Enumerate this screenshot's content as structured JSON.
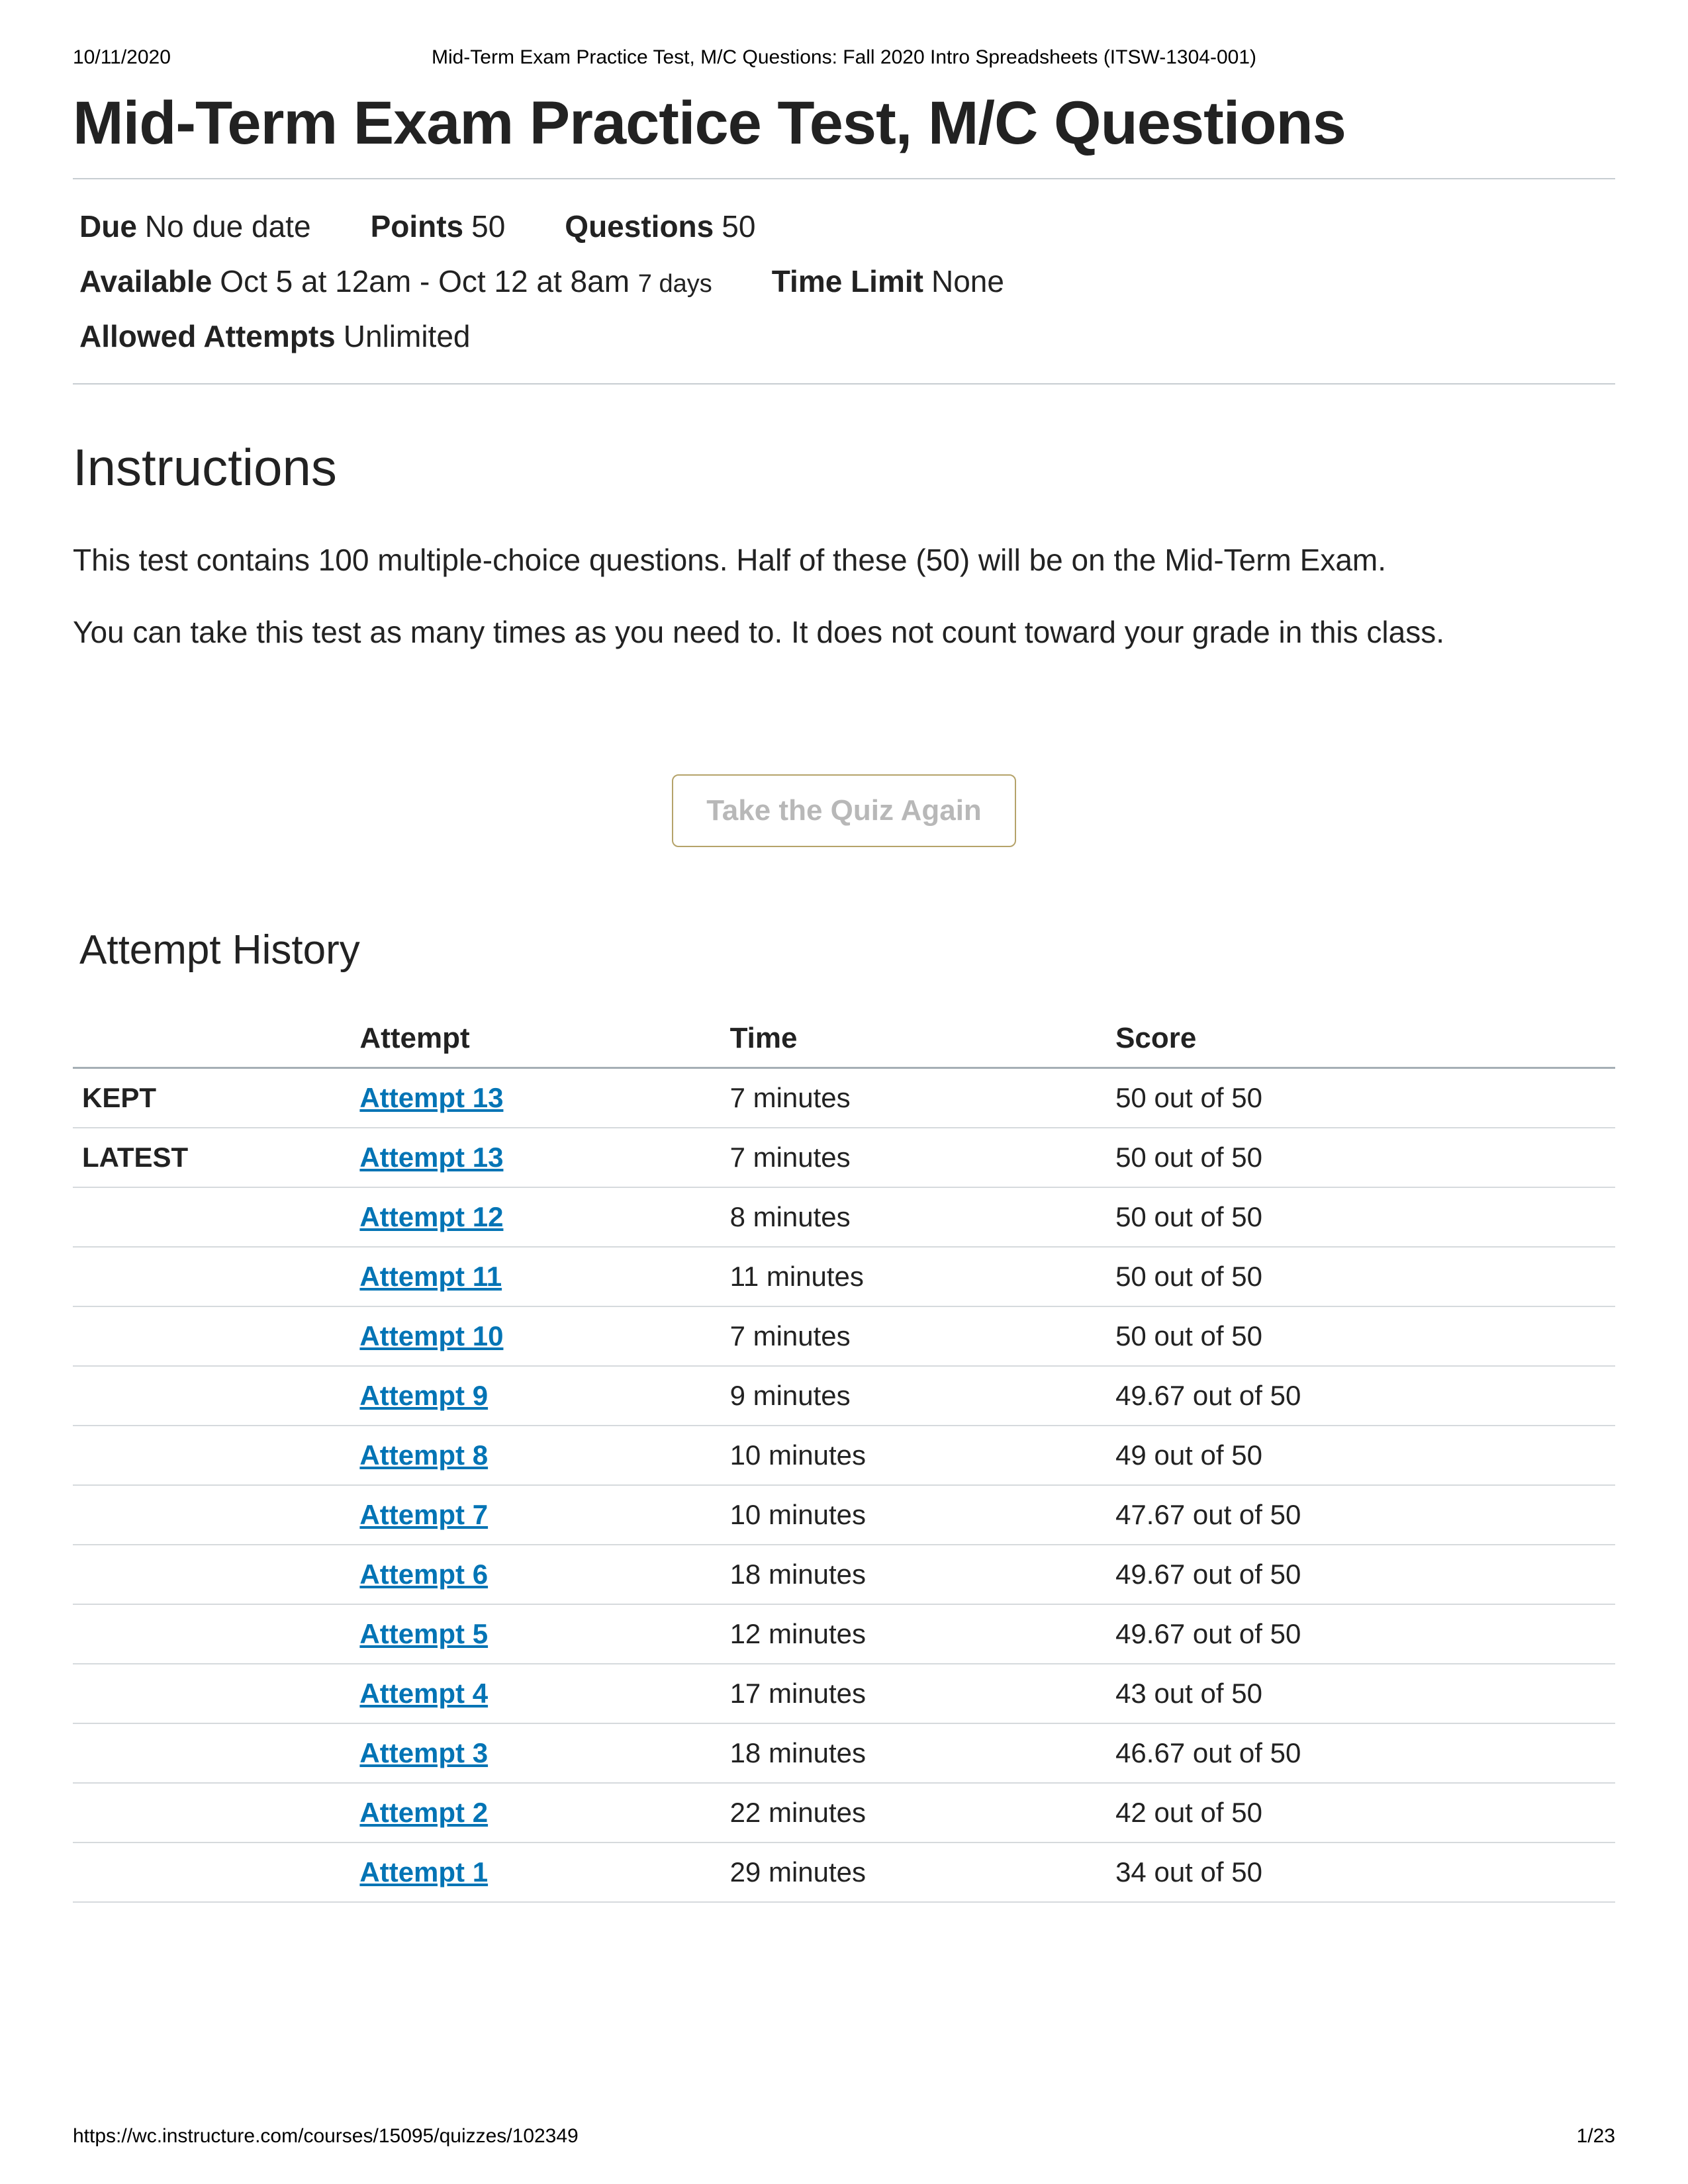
{
  "print": {
    "date": "10/11/2020",
    "header_center": "Mid-Term Exam Practice Test, M/C Questions: Fall 2020 Intro Spreadsheets (ITSW-1304-001)",
    "footer_url": "https://wc.instructure.com/courses/15095/quizzes/102349",
    "page_num": "1/23"
  },
  "title": "Mid-Term Exam Practice Test, M/C Questions",
  "meta": {
    "due_label": "Due",
    "due_value": "No due date",
    "points_label": "Points",
    "points_value": "50",
    "questions_label": "Questions",
    "questions_value": "50",
    "available_label": "Available",
    "available_value": "Oct 5 at 12am - Oct 12 at 8am",
    "available_sub": "7 days",
    "timelimit_label": "Time Limit",
    "timelimit_value": "None",
    "attempts_label": "Allowed Attempts",
    "attempts_value": "Unlimited"
  },
  "instructions": {
    "heading": "Instructions",
    "p1": "This test contains 100 multiple-choice questions. Half of these (50) will be on the Mid-Term Exam.",
    "p2": "You can take this test as many times as you need to. It does not count toward your grade in this class."
  },
  "take_again": "Take the Quiz Again",
  "history": {
    "heading": "Attempt History",
    "columns": {
      "c1": "",
      "c2": "Attempt",
      "c3": "Time",
      "c4": "Score"
    },
    "rows": [
      {
        "flag": "KEPT",
        "attempt": "Attempt 13",
        "time": "7 minutes",
        "score": "50 out of 50"
      },
      {
        "flag": "LATEST",
        "attempt": "Attempt 13",
        "time": "7 minutes",
        "score": "50 out of 50"
      },
      {
        "flag": "",
        "attempt": "Attempt 12",
        "time": "8 minutes",
        "score": "50 out of 50"
      },
      {
        "flag": "",
        "attempt": "Attempt 11",
        "time": "11 minutes",
        "score": "50 out of 50"
      },
      {
        "flag": "",
        "attempt": "Attempt 10",
        "time": "7 minutes",
        "score": "50 out of 50"
      },
      {
        "flag": "",
        "attempt": "Attempt 9",
        "time": "9 minutes",
        "score": "49.67 out of 50"
      },
      {
        "flag": "",
        "attempt": "Attempt 8",
        "time": "10 minutes",
        "score": "49 out of 50"
      },
      {
        "flag": "",
        "attempt": "Attempt 7",
        "time": "10 minutes",
        "score": "47.67 out of 50"
      },
      {
        "flag": "",
        "attempt": "Attempt 6",
        "time": "18 minutes",
        "score": "49.67 out of 50"
      },
      {
        "flag": "",
        "attempt": "Attempt 5",
        "time": "12 minutes",
        "score": "49.67 out of 50"
      },
      {
        "flag": "",
        "attempt": "Attempt 4",
        "time": "17 minutes",
        "score": "43 out of 50"
      },
      {
        "flag": "",
        "attempt": "Attempt 3",
        "time": "18 minutes",
        "score": "46.67 out of 50"
      },
      {
        "flag": "",
        "attempt": "Attempt 2",
        "time": "22 minutes",
        "score": "42 out of 50"
      },
      {
        "flag": "",
        "attempt": "Attempt 1",
        "time": "29 minutes",
        "score": "34 out of 50"
      }
    ]
  },
  "colors": {
    "link": "#0374b5",
    "border": "#c7cdd1",
    "row_border": "#d6dadd",
    "btn_border": "#b5a36a",
    "btn_text": "#b8b8b8"
  }
}
